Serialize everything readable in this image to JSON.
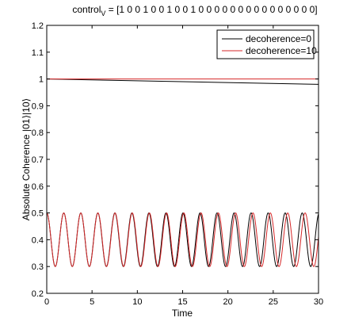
{
  "chart_data": {
    "type": "line",
    "title_main": "control",
    "title_sub": "V",
    "title_rest": " = [1 0 0 1 0 0 1 0 0 1 0 0 0 0 0 0 0 0 0 0 0 0 0 0 0]",
    "xlabel": "Time",
    "ylabel": "Absolute Coherence |01⟩|10⟩",
    "xlim": [
      0,
      30
    ],
    "ylim": [
      0.2,
      1.2
    ],
    "xticks": [
      0,
      5,
      10,
      15,
      20,
      25,
      30
    ],
    "yticks": [
      0.2,
      0.3,
      0.4,
      0.5,
      0.6,
      0.7,
      0.8,
      0.9,
      1,
      1.1,
      1.2
    ],
    "ytick_labels": [
      "0.2",
      "0.3",
      "0.4",
      "0.5",
      "0.6",
      "0.7",
      "0.8",
      "0.9",
      "1",
      "1.1",
      "1.2"
    ],
    "grid": false,
    "legend_position": "top-right",
    "oscillation": {
      "center": 0.4,
      "amplitude": 0.1,
      "period": 1.88,
      "start_value": 0.5
    },
    "series": [
      {
        "name": "decoherence=0",
        "color": "#000000",
        "upper_x": [
          0,
          30
        ],
        "upper_y": [
          1.0,
          0.98
        ]
      },
      {
        "name": "decoherence=10",
        "color": "#d62728",
        "upper_x": [
          0,
          30
        ],
        "upper_y": [
          1.0,
          1.0
        ]
      }
    ]
  }
}
